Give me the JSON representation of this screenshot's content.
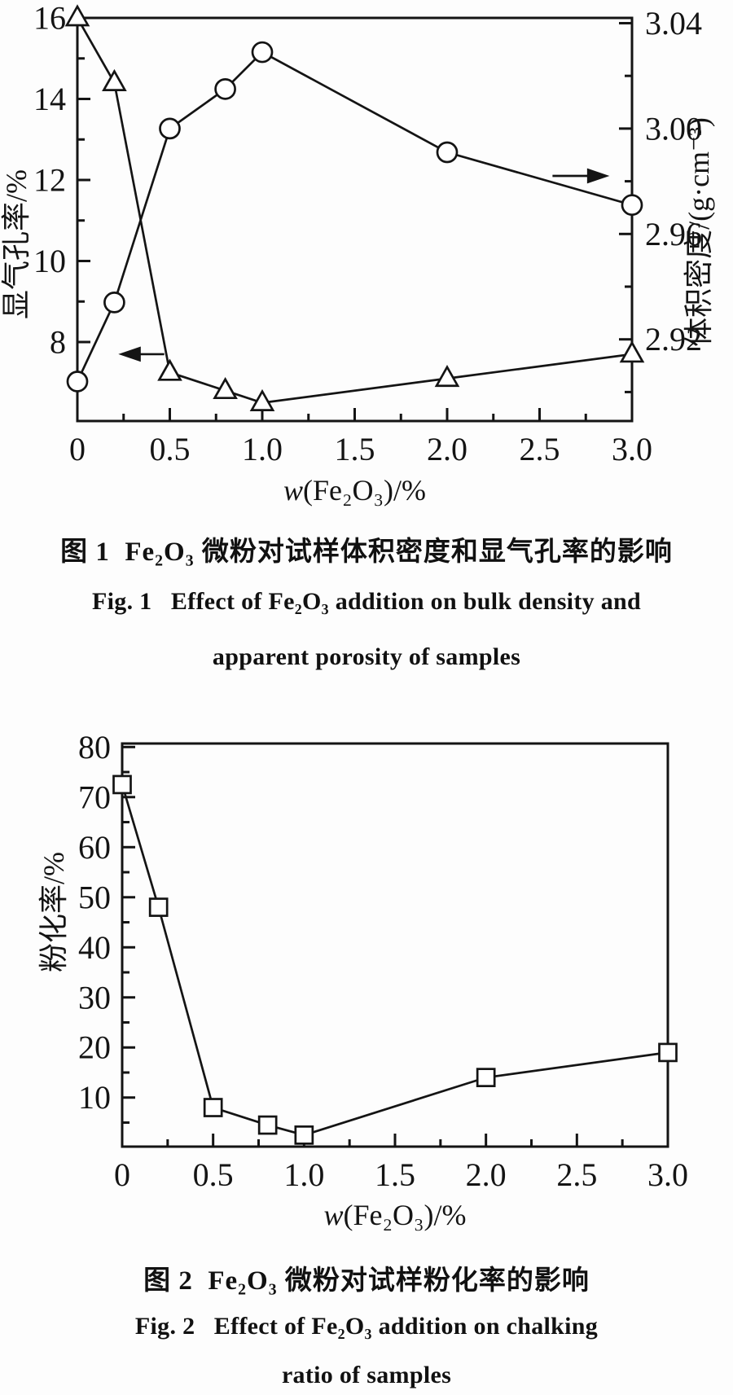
{
  "page": {
    "background": "#fdfdfd",
    "ink": "#141414"
  },
  "figure1": {
    "caption_zh": "图 1  Fe₂O₃ 微粉对试样体积密度和显气孔率的影响",
    "caption_en_line1": "Fig. 1   Effect of Fe₂O₃ addition on bulk density and",
    "caption_en_line2": "apparent porosity of samples"
  },
  "figure2": {
    "caption_zh": "图 2  Fe₂O₃ 微粉对试样粉化率的影响",
    "caption_en_line1": "Fig. 2   Effect of Fe₂O₃ addition on chalking",
    "caption_en_line2": "ratio of samples"
  },
  "chart_data": [
    {
      "type": "line",
      "title": "",
      "legend": "none",
      "grid": false,
      "x": {
        "label": "w(Fe₂O₃)/%",
        "lim": [
          0,
          3.0
        ],
        "major": [
          0,
          0.5,
          1.0,
          1.5,
          2.0,
          2.5,
          3.0
        ],
        "minor": [
          0.25,
          0.75,
          1.25,
          1.75,
          2.25,
          2.75
        ],
        "tick_labels": [
          "0",
          "0.5",
          "1.0",
          "1.5",
          "2.0",
          "2.5",
          "3.0"
        ]
      },
      "y_left": {
        "label": "显气孔率/%",
        "lim": [
          6.05,
          16
        ],
        "major": [
          8,
          10,
          12,
          14,
          16
        ],
        "minor": [
          7,
          9,
          11,
          13,
          15
        ],
        "tick_labels": [
          "8",
          "10",
          "12",
          "14",
          "16"
        ]
      },
      "y_right": {
        "label": "体积密度/(g·cm⁻³)",
        "lim": [
          2.889,
          3.042
        ],
        "major": [
          2.92,
          2.96,
          3.0,
          3.04
        ],
        "minor": [
          2.9,
          2.94,
          2.98,
          3.02
        ],
        "tick_labels": [
          "2.92",
          "2.96",
          "3.00",
          "3.04"
        ]
      },
      "series": [
        {
          "name": "apparent-porosity",
          "axis": "left",
          "marker": "triangle",
          "x": [
            0,
            0.2,
            0.5,
            0.8,
            1.0,
            2.0,
            3.0
          ],
          "y": [
            16.0,
            14.4,
            7.25,
            6.8,
            6.5,
            7.1,
            7.7
          ]
        },
        {
          "name": "bulk-density",
          "axis": "right",
          "marker": "circle",
          "x": [
            0,
            0.2,
            0.5,
            0.8,
            1.0,
            2.0,
            3.0
          ],
          "y": [
            2.904,
            2.934,
            3.0,
            3.015,
            3.029,
            2.991,
            2.971
          ]
        }
      ],
      "annotations": [
        {
          "dir": "left",
          "x_tail": 0.47,
          "x_head": 0.24,
          "y_axis": "left",
          "y": 7.7
        },
        {
          "dir": "right",
          "x_tail": 2.57,
          "x_head": 2.86,
          "y_axis": "left",
          "y": 12.1
        }
      ]
    },
    {
      "type": "line",
      "title": "",
      "legend": "none",
      "grid": false,
      "x": {
        "label": "w(Fe₂O₃)/%",
        "lim": [
          0,
          3.0
        ],
        "major": [
          0,
          0.5,
          1.0,
          1.5,
          2.0,
          2.5,
          3.0
        ],
        "minor": [
          0.25,
          0.75,
          1.25,
          1.75,
          2.25,
          2.75
        ],
        "tick_labels": [
          "0",
          "0.5",
          "1.0",
          "1.5",
          "2.0",
          "2.5",
          "3.0"
        ]
      },
      "y_left": {
        "label": "粉化率/%",
        "lim": [
          0.2,
          80.7
        ],
        "major": [
          10,
          20,
          30,
          40,
          50,
          60,
          70,
          80
        ],
        "minor": [
          5,
          15,
          25,
          35,
          45,
          55,
          65,
          75
        ],
        "tick_labels": [
          "10",
          "20",
          "30",
          "40",
          "50",
          "60",
          "70",
          "80"
        ]
      },
      "y_right": null,
      "series": [
        {
          "name": "chalking-ratio",
          "axis": "left",
          "marker": "square",
          "x": [
            0,
            0.2,
            0.5,
            0.8,
            1.0,
            2.0,
            3.0
          ],
          "y": [
            72.5,
            48,
            8,
            4.5,
            2.5,
            14,
            19
          ]
        }
      ],
      "annotations": []
    }
  ]
}
